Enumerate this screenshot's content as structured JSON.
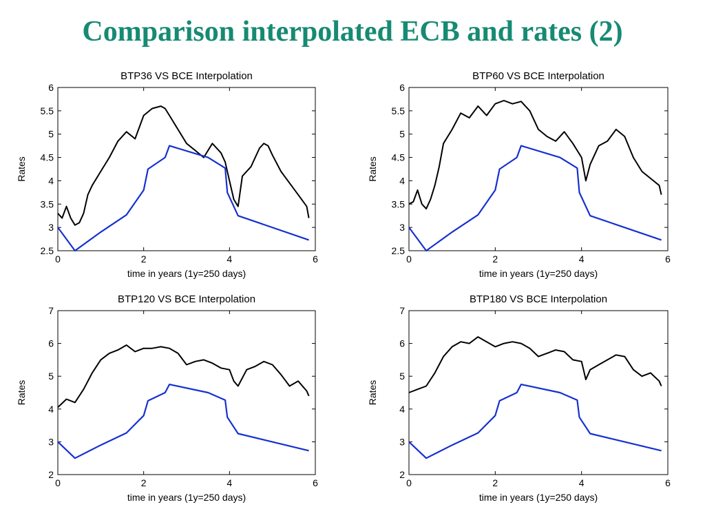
{
  "page_title": "Comparison interpolated ECB and rates (2)",
  "colors": {
    "title": "#178a73",
    "btp": "#000000",
    "bce": "#1530d0"
  },
  "chart_data": [
    {
      "type": "line",
      "title": "BTP36 VS BCE Interpolation",
      "xlabel": "time in years (1y=250 days)",
      "ylabel": "Rates",
      "xlim": [
        0,
        6
      ],
      "ylim": [
        2.5,
        6
      ],
      "xticks": [
        0,
        2,
        4,
        6
      ],
      "yticks": [
        2.5,
        3,
        3.5,
        4,
        4.5,
        5,
        5.5,
        6
      ],
      "grid": false,
      "series": [
        {
          "color": "#000000",
          "x": [
            0,
            0.1,
            0.2,
            0.3,
            0.4,
            0.5,
            0.6,
            0.7,
            0.8,
            1.0,
            1.2,
            1.4,
            1.6,
            1.8,
            2.0,
            2.2,
            2.4,
            2.5,
            2.6,
            2.8,
            3.0,
            3.2,
            3.4,
            3.6,
            3.8,
            3.9,
            4.0,
            4.1,
            4.2,
            4.3,
            4.5,
            4.7,
            4.8,
            4.9,
            5.0,
            5.2,
            5.4,
            5.6,
            5.8,
            5.85
          ],
          "y": [
            3.3,
            3.2,
            3.45,
            3.2,
            3.05,
            3.1,
            3.3,
            3.7,
            3.9,
            4.2,
            4.5,
            4.85,
            5.05,
            4.9,
            5.4,
            5.55,
            5.6,
            5.55,
            5.4,
            5.1,
            4.8,
            4.65,
            4.5,
            4.8,
            4.6,
            4.4,
            4.0,
            3.6,
            3.45,
            4.1,
            4.3,
            4.7,
            4.8,
            4.75,
            4.55,
            4.2,
            3.95,
            3.7,
            3.45,
            3.2
          ]
        },
        {
          "color": "#1530d0",
          "x": [
            0,
            0.4,
            1.0,
            1.6,
            2.0,
            2.1,
            2.5,
            2.6,
            3.5,
            3.9,
            3.95,
            4.2,
            5.85
          ],
          "y": [
            3.0,
            2.5,
            2.9,
            3.27,
            3.8,
            4.25,
            4.5,
            4.75,
            4.5,
            4.27,
            3.75,
            3.25,
            2.73
          ]
        }
      ]
    },
    {
      "type": "line",
      "title": "BTP60 VS BCE Interpolation",
      "xlabel": "time in years (1y=250 days)",
      "ylabel": "Rates",
      "xlim": [
        0,
        6
      ],
      "ylim": [
        2.5,
        6
      ],
      "xticks": [
        0,
        2,
        4,
        6
      ],
      "yticks": [
        2.5,
        3,
        3.5,
        4,
        4.5,
        5,
        5.5,
        6
      ],
      "grid": false,
      "series": [
        {
          "color": "#000000",
          "x": [
            0,
            0.1,
            0.2,
            0.3,
            0.4,
            0.5,
            0.6,
            0.7,
            0.8,
            1.0,
            1.2,
            1.4,
            1.6,
            1.8,
            2.0,
            2.2,
            2.4,
            2.6,
            2.8,
            3.0,
            3.2,
            3.4,
            3.6,
            3.8,
            4.0,
            4.1,
            4.2,
            4.4,
            4.6,
            4.8,
            5.0,
            5.2,
            5.4,
            5.6,
            5.8,
            5.85
          ],
          "y": [
            3.5,
            3.55,
            3.8,
            3.5,
            3.4,
            3.6,
            3.9,
            4.3,
            4.8,
            5.1,
            5.45,
            5.35,
            5.6,
            5.4,
            5.65,
            5.72,
            5.65,
            5.7,
            5.5,
            5.1,
            4.95,
            4.85,
            5.05,
            4.8,
            4.5,
            4.0,
            4.35,
            4.75,
            4.85,
            5.1,
            4.95,
            4.5,
            4.2,
            4.05,
            3.9,
            3.7
          ]
        },
        {
          "color": "#1530d0",
          "x": [
            0,
            0.4,
            1.0,
            1.6,
            2.0,
            2.1,
            2.5,
            2.6,
            3.5,
            3.9,
            3.95,
            4.2,
            5.85
          ],
          "y": [
            3.0,
            2.5,
            2.9,
            3.27,
            3.8,
            4.25,
            4.5,
            4.75,
            4.5,
            4.27,
            3.75,
            3.25,
            2.73
          ]
        }
      ]
    },
    {
      "type": "line",
      "title": "BTP120 VS BCE Interpolation",
      "xlabel": "time in years (1y=250 days)",
      "ylabel": "Rates",
      "xlim": [
        0,
        6
      ],
      "ylim": [
        2,
        7
      ],
      "xticks": [
        0,
        2,
        4,
        6
      ],
      "yticks": [
        2,
        3,
        4,
        5,
        6,
        7
      ],
      "grid": false,
      "series": [
        {
          "color": "#000000",
          "x": [
            0,
            0.2,
            0.4,
            0.6,
            0.8,
            1.0,
            1.2,
            1.4,
            1.6,
            1.8,
            2.0,
            2.2,
            2.4,
            2.6,
            2.8,
            3.0,
            3.2,
            3.4,
            3.6,
            3.8,
            4.0,
            4.1,
            4.2,
            4.4,
            4.6,
            4.8,
            5.0,
            5.2,
            5.4,
            5.6,
            5.8,
            5.85
          ],
          "y": [
            4.05,
            4.3,
            4.2,
            4.6,
            5.1,
            5.5,
            5.7,
            5.8,
            5.95,
            5.75,
            5.85,
            5.85,
            5.9,
            5.85,
            5.7,
            5.35,
            5.45,
            5.5,
            5.4,
            5.25,
            5.2,
            4.85,
            4.7,
            5.2,
            5.3,
            5.45,
            5.35,
            5.05,
            4.7,
            4.85,
            4.55,
            4.4
          ]
        },
        {
          "color": "#1530d0",
          "x": [
            0,
            0.4,
            1.0,
            1.6,
            2.0,
            2.1,
            2.5,
            2.6,
            3.5,
            3.9,
            3.95,
            4.2,
            5.85
          ],
          "y": [
            3.0,
            2.5,
            2.9,
            3.27,
            3.8,
            4.25,
            4.5,
            4.75,
            4.5,
            4.27,
            3.75,
            3.25,
            2.73
          ]
        }
      ]
    },
    {
      "type": "line",
      "title": "BTP180 VS BCE Interpolation",
      "xlabel": "time in years (1y=250 days)",
      "ylabel": "Rates",
      "xlim": [
        0,
        6
      ],
      "ylim": [
        2,
        7
      ],
      "xticks": [
        0,
        2,
        4,
        6
      ],
      "yticks": [
        2,
        3,
        4,
        5,
        6,
        7
      ],
      "grid": false,
      "series": [
        {
          "color": "#000000",
          "x": [
            0,
            0.2,
            0.4,
            0.6,
            0.8,
            1.0,
            1.2,
            1.4,
            1.6,
            1.8,
            2.0,
            2.2,
            2.4,
            2.6,
            2.8,
            3.0,
            3.2,
            3.4,
            3.6,
            3.8,
            4.0,
            4.1,
            4.2,
            4.4,
            4.6,
            4.8,
            5.0,
            5.2,
            5.4,
            5.6,
            5.8,
            5.85
          ],
          "y": [
            4.5,
            4.6,
            4.7,
            5.1,
            5.6,
            5.9,
            6.05,
            6.0,
            6.2,
            6.05,
            5.9,
            6.0,
            6.05,
            6.0,
            5.85,
            5.6,
            5.7,
            5.8,
            5.75,
            5.5,
            5.45,
            4.9,
            5.2,
            5.35,
            5.5,
            5.65,
            5.6,
            5.2,
            5.0,
            5.1,
            4.85,
            4.7
          ]
        },
        {
          "color": "#1530d0",
          "x": [
            0,
            0.4,
            1.0,
            1.6,
            2.0,
            2.1,
            2.5,
            2.6,
            3.5,
            3.9,
            3.95,
            4.2,
            5.85
          ],
          "y": [
            3.0,
            2.5,
            2.9,
            3.27,
            3.8,
            4.25,
            4.5,
            4.75,
            4.5,
            4.27,
            3.75,
            3.25,
            2.73
          ]
        }
      ]
    }
  ]
}
